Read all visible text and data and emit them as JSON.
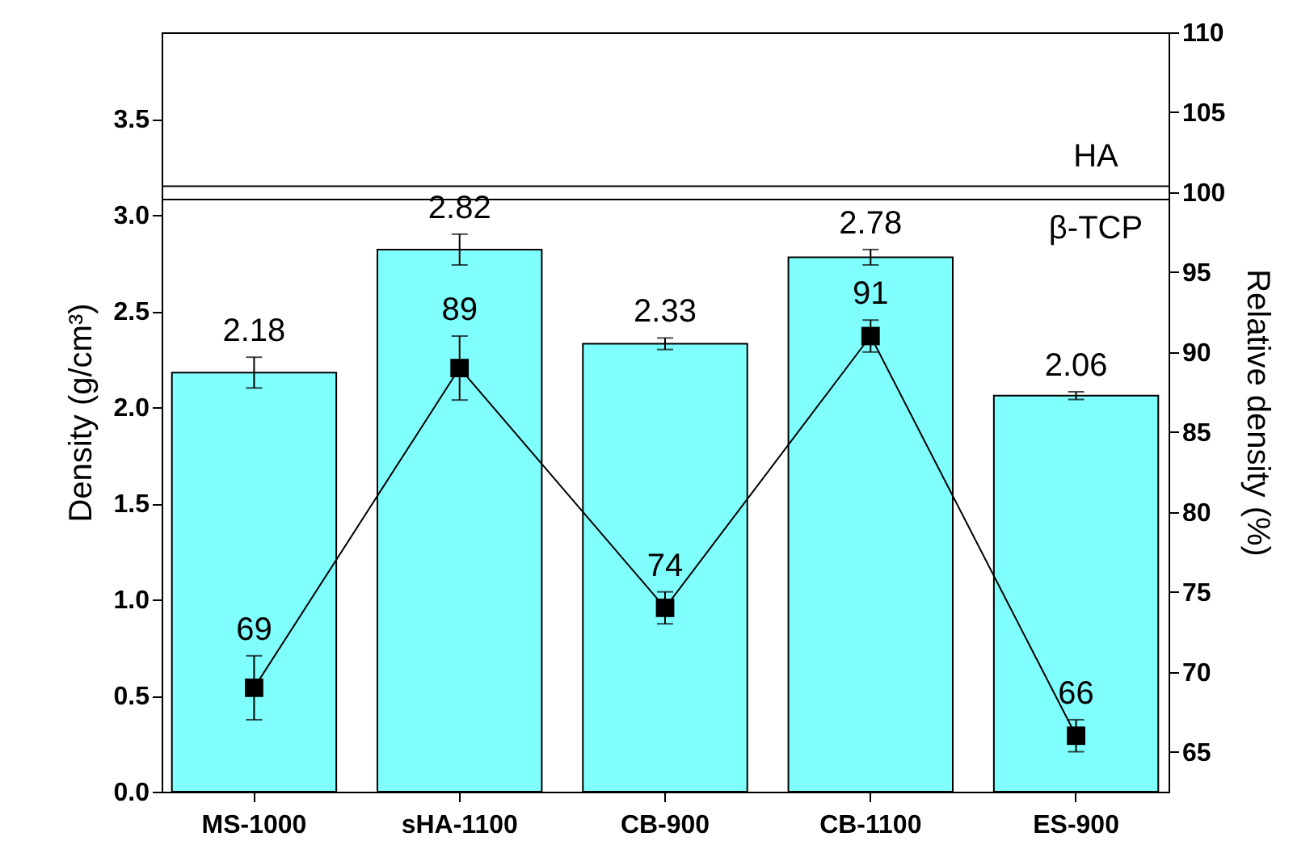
{
  "chart_data": {
    "type": "bar",
    "ylabel": "Density (g/cm³)",
    "y2label": "Relative density (%)",
    "categories": [
      "MS-1000",
      "sHA-1100",
      "CB-900",
      "CB-1100",
      "ES-900"
    ],
    "ylim": [
      0,
      3.95
    ],
    "yticks": [
      {
        "value": 0,
        "label": "0.0"
      },
      {
        "value": 0.5,
        "label": "0.5"
      },
      {
        "value": 1,
        "label": "1.0"
      },
      {
        "value": 1.5,
        "label": "1.5"
      },
      {
        "value": 2,
        "label": "2.0"
      },
      {
        "value": 2.5,
        "label": "2.5"
      },
      {
        "value": 3,
        "label": "3.0"
      },
      {
        "value": 3.5,
        "label": "3.5"
      }
    ],
    "y2lim": [
      62.5,
      110
    ],
    "y2ticks": [
      65,
      70,
      75,
      80,
      85,
      90,
      95,
      100,
      105,
      110
    ],
    "series": [
      {
        "color": "#80ffff",
        "values": [
          2.18,
          2.82,
          2.33,
          2.78,
          2.06
        ],
        "errors": [
          0.08,
          0.08,
          0.03,
          0.04,
          0.02
        ]
      },
      {
        "type": "line",
        "axis": "y2",
        "color": "#000000",
        "values": [
          69,
          89,
          74,
          91,
          66
        ],
        "errors": [
          2,
          2,
          1,
          1,
          1
        ]
      }
    ],
    "ref_lines": [
      {
        "axis": "y",
        "value": 3.15,
        "label": "HA",
        "color": "#000000"
      },
      {
        "axis": "y",
        "value": 3.08,
        "label": "β-TCP",
        "color": "#000000"
      }
    ],
    "marker": "square",
    "data_labels": true
  }
}
